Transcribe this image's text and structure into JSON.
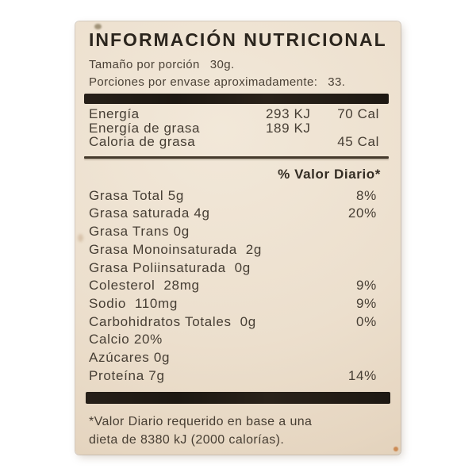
{
  "label": {
    "title": "INFORMACIÓN NUTRICIONAL",
    "serving_size": {
      "label": "Tamaño por porción",
      "value": "30g."
    },
    "servings_per_container": {
      "label": "Porciones por envase aproximadamente:",
      "value": "33."
    },
    "energy_rows": [
      {
        "name": "Energía",
        "kj": "293 KJ",
        "cal": "70 Cal"
      },
      {
        "name": "Energía de grasa",
        "kj": "189 KJ",
        "cal": ""
      },
      {
        "name": "Caloria de grasa",
        "kj": "",
        "cal": "45 Cal"
      }
    ],
    "daily_value_header": "% Valor Diario*",
    "nutrients": [
      {
        "name": "Grasa Total 5g",
        "dv": "8%"
      },
      {
        "name": "Grasa saturada 4g",
        "dv": "20%"
      },
      {
        "name": "Grasa Trans 0g",
        "dv": ""
      },
      {
        "name": "Grasa Monoinsaturada  2g",
        "dv": ""
      },
      {
        "name": "Grasa Poliinsaturada  0g",
        "dv": ""
      },
      {
        "name": "Colesterol  28mg",
        "dv": "9%"
      },
      {
        "name": "Sodio  110mg",
        "dv": "9%"
      },
      {
        "name": "Carbohidratos Totales  0g",
        "dv": "0%"
      },
      {
        "name": "Calcio 20%",
        "dv": ""
      },
      {
        "name": "Azúcares 0g",
        "dv": ""
      },
      {
        "name": "Proteína 7g",
        "dv": "14%"
      }
    ],
    "footnote": {
      "line1": "*Valor Diario requerido en base a una",
      "line2": "dieta de 8380 kJ (2000 calorías)."
    }
  },
  "colors": {
    "page_background": "#ffffff",
    "label_background": "#ecdfcd",
    "body_text": "#463e34",
    "title_text": "#2b251d",
    "divider_bar": "#1d1812"
  }
}
